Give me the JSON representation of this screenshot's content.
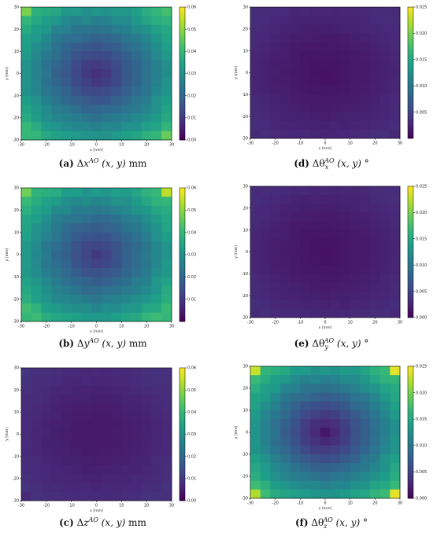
{
  "chart_data": [
    {
      "id": "a",
      "type": "heatmap",
      "cmap": "viridis",
      "caption": {
        "letter": "(a)",
        "pre": "Δ",
        "var": "x",
        "sup": "AO",
        "args": "(x, y)",
        "unit": "mm"
      },
      "xlabel": "x [mm]",
      "ylabel": "y [mm]",
      "xlim": [
        -30,
        30
      ],
      "ylim": [
        -30,
        30
      ],
      "xticks": [
        "-30",
        "-20",
        "-10",
        "0",
        "10",
        "20",
        "30"
      ],
      "yticks": [
        "30",
        "20",
        "10",
        "0",
        "-10",
        "-20",
        "-30"
      ],
      "clim": [
        0,
        0.06
      ],
      "cticks": [
        "0.06",
        "0.05",
        "0.04",
        "0.03",
        "0.02",
        "0.01",
        "0.00"
      ],
      "grid": {
        "n": 15,
        "base": 0.008,
        "gain": 0.034,
        "power": 1.2,
        "corner": [
          0.048,
          0.042,
          0.04,
          0.046
        ]
      }
    },
    {
      "id": "d",
      "type": "heatmap",
      "cmap": "viridis",
      "caption": {
        "letter": "(d)",
        "pre": "Δθ",
        "var": "",
        "sub": "x",
        "sup": "AO",
        "args": "(x, y)",
        "unit": "°"
      },
      "xlabel": "x [mm]",
      "ylabel": "y [mm]",
      "xlim": [
        -30,
        30
      ],
      "ylim": [
        -30,
        30
      ],
      "xticks": [
        "-30",
        "-20",
        "-10",
        "0",
        "10",
        "20",
        "30"
      ],
      "yticks": [
        "30",
        "20",
        "10",
        "0",
        "-10",
        "-20",
        "-30"
      ],
      "clim": [
        0,
        0.025
      ],
      "cticks": [
        "0.025",
        "0.020",
        "0.015",
        "0.010",
        "0.005"
      ],
      "grid": {
        "n": 15,
        "base": 0.0012,
        "gain": 0.0022,
        "power": 1.3,
        "corner": [
          0.0032,
          0.003,
          0.003,
          0.0028
        ]
      }
    },
    {
      "id": "b",
      "type": "heatmap",
      "cmap": "viridis",
      "caption": {
        "letter": "(b)",
        "pre": "Δ",
        "var": "y",
        "sup": "AO",
        "args": "(x, y)",
        "unit": "mm"
      },
      "xlabel": "x [mm]",
      "ylabel": "y [mm]",
      "xlim": [
        -30,
        30
      ],
      "ylim": [
        -30,
        30
      ],
      "xticks": [
        "-30",
        "-20",
        "-10",
        "0",
        "10",
        "20",
        "30"
      ],
      "yticks": [
        "30",
        "20",
        "10",
        "0",
        "-10",
        "-20",
        "-30"
      ],
      "clim": [
        0,
        0.06
      ],
      "cticks": [
        "0.06",
        "0.05",
        "0.04",
        "0.03",
        "0.02",
        "0.01"
      ],
      "grid": {
        "n": 15,
        "base": 0.01,
        "gain": 0.033,
        "power": 1.2,
        "corner": [
          0.047,
          0.054,
          0.04,
          0.04
        ]
      }
    },
    {
      "id": "e",
      "type": "heatmap",
      "cmap": "viridis",
      "caption": {
        "letter": "(e)",
        "pre": "Δθ",
        "var": "",
        "sub": "y",
        "sup": "AO",
        "args": "(x, y)",
        "unit": "°"
      },
      "xlabel": "x [mm]",
      "ylabel": "y [mm]",
      "xlim": [
        -30,
        30
      ],
      "ylim": [
        -30,
        30
      ],
      "xticks": [
        "-30",
        "-20",
        "-10",
        "0",
        "10",
        "20",
        "30"
      ],
      "yticks": [
        "30",
        "20",
        "10",
        "0",
        "-10",
        "-20",
        "-30"
      ],
      "clim": [
        0,
        0.025
      ],
      "cticks": [
        "0.025",
        "0.020",
        "0.015",
        "0.010",
        "0.005",
        "0.000"
      ],
      "grid": {
        "n": 15,
        "base": 0.0012,
        "gain": 0.0022,
        "power": 1.3,
        "corner": [
          0.003,
          0.0032,
          0.003,
          0.003
        ]
      }
    },
    {
      "id": "c",
      "type": "heatmap",
      "cmap": "viridis",
      "caption": {
        "letter": "(c)",
        "pre": "Δ",
        "var": "z",
        "sup": "AO",
        "args": "(x, y)",
        "unit": "mm"
      },
      "xlabel": "x [mm]",
      "ylabel": "y [mm]",
      "xlim": [
        -30,
        30
      ],
      "ylim": [
        -30,
        30
      ],
      "xticks": [
        "-30",
        "-20",
        "-10",
        "0",
        "10",
        "20",
        "30"
      ],
      "yticks": [
        "30",
        "20",
        "10",
        "0",
        "-10",
        "-20",
        "-30"
      ],
      "clim": [
        0,
        0.06
      ],
      "cticks": [
        "0.06",
        "0.05",
        "0.04",
        "0.03",
        "0.02",
        "0.01",
        "0.00"
      ],
      "grid": {
        "n": 15,
        "base": 0.004,
        "gain": 0.005,
        "power": 1.5,
        "corner": [
          0.009,
          0.008,
          0.007,
          0.008
        ]
      }
    },
    {
      "id": "f",
      "type": "heatmap",
      "cmap": "viridis",
      "caption": {
        "letter": "(f)",
        "pre": "Δθ",
        "var": "",
        "sub": "z",
        "sup": "AO",
        "args": "(x, y)",
        "unit": "°"
      },
      "xlabel": "x [mm]",
      "ylabel": "y [mm]",
      "xlim": [
        -30,
        30
      ],
      "ylim": [
        -30,
        30
      ],
      "xticks": [
        "-30",
        "-20",
        "-10",
        "0",
        "10",
        "20",
        "30"
      ],
      "yticks": [
        "30",
        "20",
        "10",
        "0",
        "-10",
        "-20",
        "-30"
      ],
      "clim": [
        0,
        0.025
      ],
      "cticks": [
        "0.025",
        "0.020",
        "0.015",
        "0.010",
        "0.005",
        "0.000"
      ],
      "grid": {
        "n": 15,
        "base": 0.0015,
        "gain": 0.0165,
        "power": 1.1,
        "corner": [
          0.023,
          0.024,
          0.022,
          0.024
        ]
      }
    }
  ]
}
